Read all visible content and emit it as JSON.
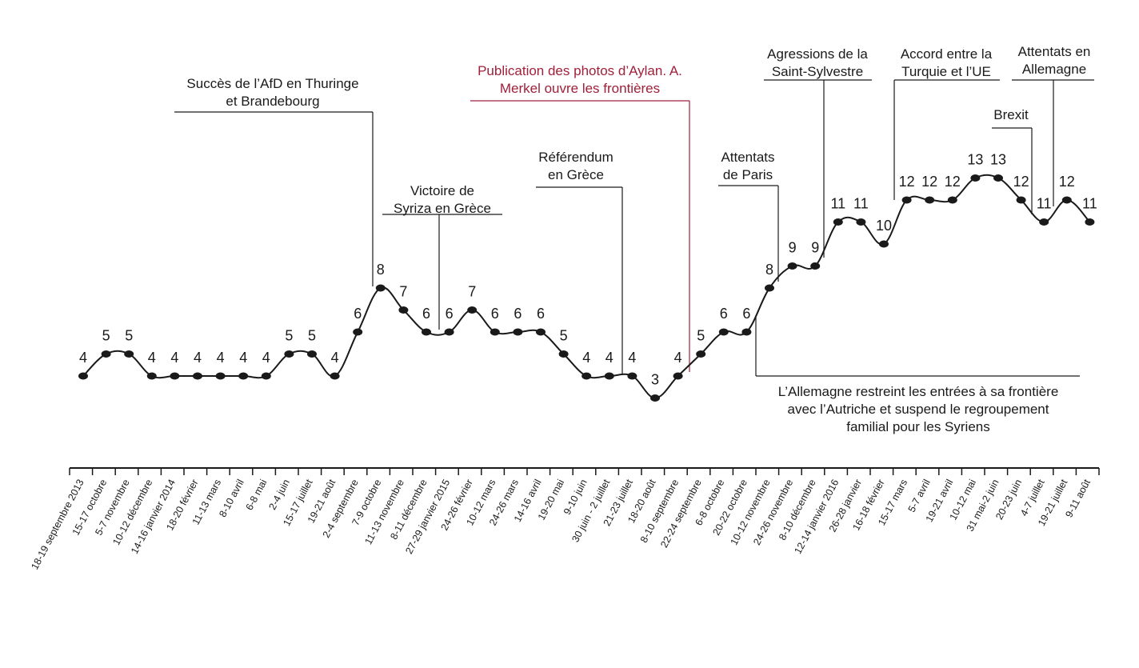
{
  "chart_data": {
    "type": "line",
    "title": "",
    "xlabel": "",
    "ylabel": "",
    "ylim": [
      0,
      14
    ],
    "grid": false,
    "categories": [
      "18-19 septembre 2013",
      "15-17 octobre",
      "5-7 novembre",
      "10-12 décembre",
      "14-16 janvier 2014",
      "18-20 février",
      "11-13 mars",
      "8-10 avril",
      "6-8 mai",
      "2-4 juin",
      "15-17 juillet",
      "19-21 août",
      "2-4 septembre",
      "7-9 octobre",
      "11-13 novembre",
      "8-11 décembre",
      "27-29 janvier 2015",
      "24-26 février",
      "10-12 mars",
      "24-26 mars",
      "14-16 avril",
      "19-20 mai",
      "9-10 juin",
      "30 juin - 2 juillet",
      "21-23 juillet",
      "18-20 août",
      "8-10 septembre",
      "22-24 septembre",
      "6-8 octobre",
      "20-22 octobre",
      "10-12 novembre",
      "24-26 novembre",
      "8-10 décembre",
      "12-14 janvier 2016",
      "26-28 janvier",
      "16-18 février",
      "15-17 mars",
      "5-7 avril",
      "19-21 avril",
      "10-12 mai",
      "31 mai-2 juin",
      "20-23 juin",
      "4-7 juillet",
      "19-21 juillet",
      "9-11 août"
    ],
    "values": [
      4,
      5,
      5,
      4,
      4,
      4,
      4,
      4,
      4,
      5,
      5,
      4,
      6,
      8,
      7,
      6,
      6,
      7,
      6,
      6,
      6,
      5,
      4,
      4,
      4,
      3,
      4,
      5,
      6,
      6,
      8,
      9,
      9,
      11,
      11,
      10,
      12,
      12,
      12,
      13,
      13,
      12,
      11,
      12,
      11
    ],
    "annotations": [
      {
        "lines": [
          "Succès de l’AfD en Thuringe",
          "et Brandebourg"
        ],
        "color": "#1a1a1a"
      },
      {
        "lines": [
          "Victoire de",
          "Syriza en Grèce"
        ],
        "color": "#1a1a1a"
      },
      {
        "lines": [
          "Référendum",
          "en Grèce"
        ],
        "color": "#1a1a1a"
      },
      {
        "lines": [
          "Publication des photos d’Aylan. A.",
          "Merkel ouvre les frontières"
        ],
        "color": "#a0203a"
      },
      {
        "lines": [
          "Attentats",
          "de Paris"
        ],
        "color": "#1a1a1a"
      },
      {
        "lines": [
          "Agressions de la",
          "Saint-Sylvestre"
        ],
        "color": "#1a1a1a"
      },
      {
        "lines": [
          "Accord entre la",
          "Turquie et l’UE"
        ],
        "color": "#1a1a1a"
      },
      {
        "lines": [
          "Brexit"
        ],
        "color": "#1a1a1a"
      },
      {
        "lines": [
          "Attentats en",
          "Allemagne"
        ],
        "color": "#1a1a1a"
      },
      {
        "lines": [
          "L’Allemagne restreint les entrées à sa frontière",
          "avec l’Autriche et suspend le regroupement",
          "familial pour les Syriens"
        ],
        "color": "#1a1a1a"
      }
    ],
    "line_color": "#1a1a1a"
  }
}
